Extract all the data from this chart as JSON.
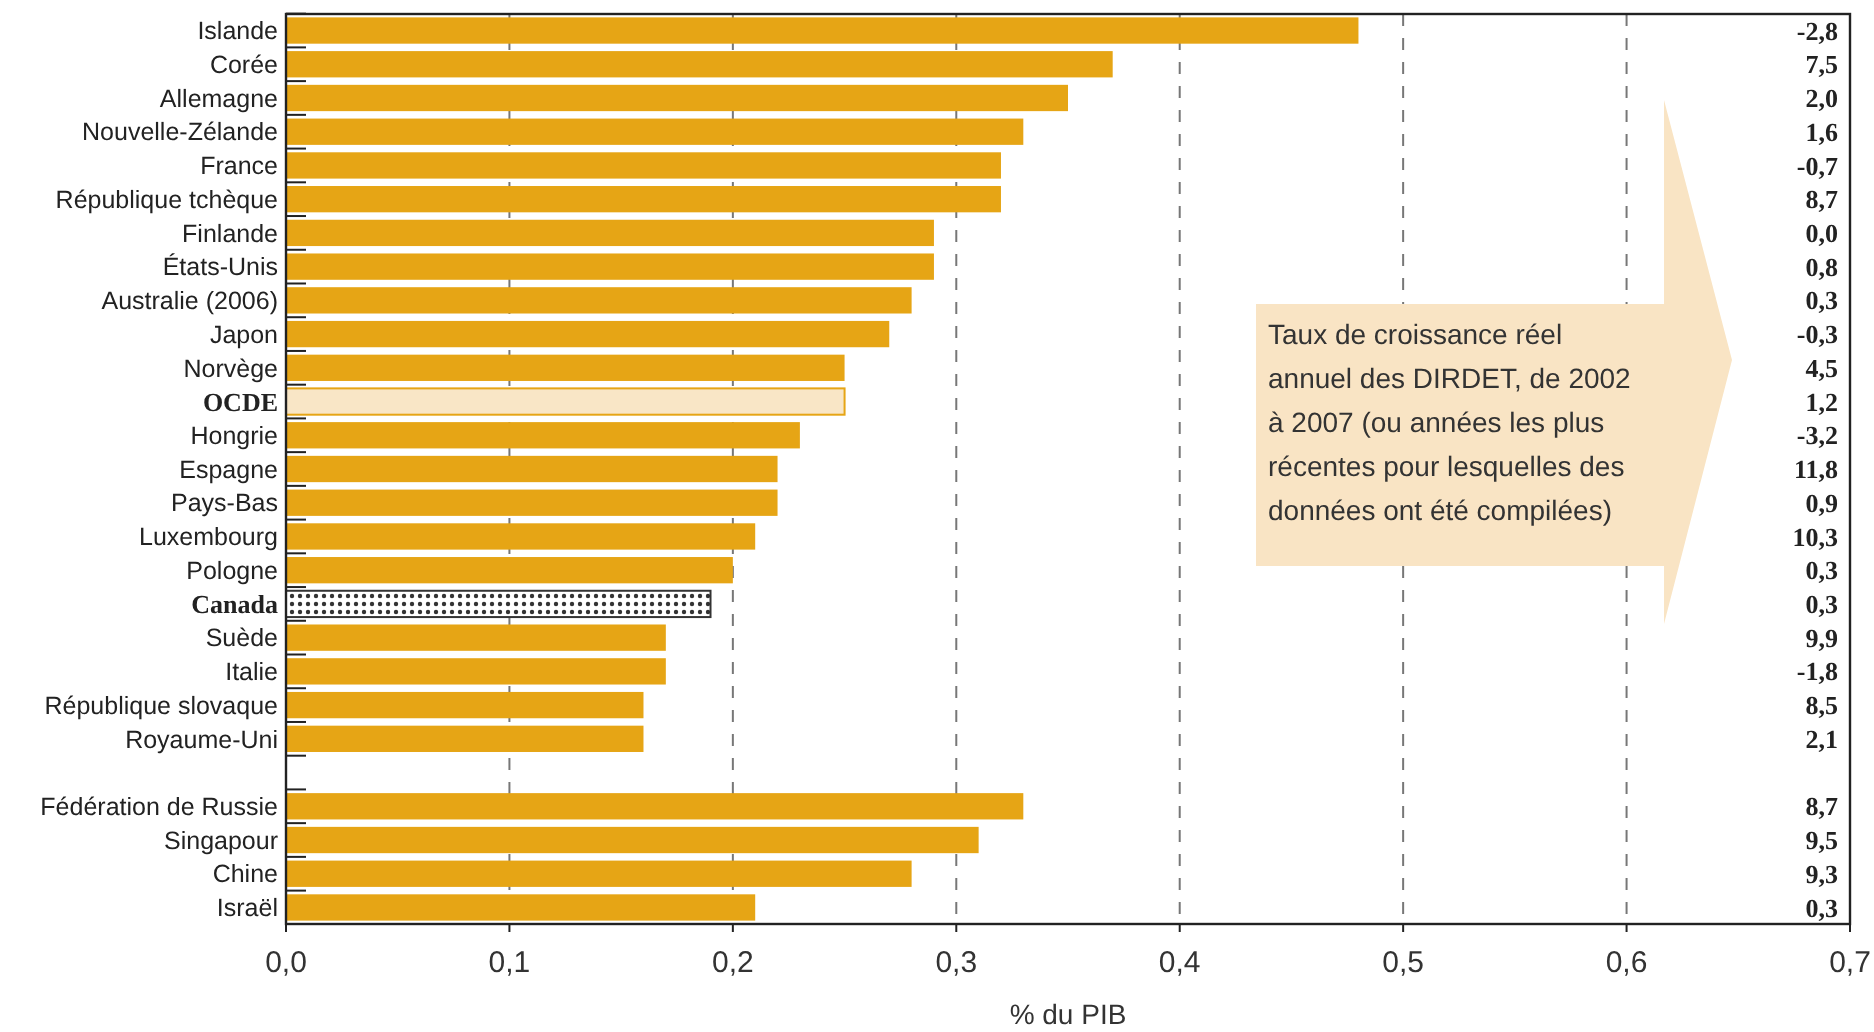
{
  "chart_data": {
    "type": "bar",
    "orientation": "horizontal",
    "xlabel": "% du PIB",
    "categories": [
      "Islande",
      "Corée",
      "Allemagne",
      "Nouvelle-Zélande",
      "France",
      "République tchèque",
      "Finlande",
      "États-Unis",
      "Australie (2006)",
      "Japon",
      "Norvège",
      "OCDE",
      "Hongrie",
      "Espagne",
      "Pays-Bas",
      "Luxembourg",
      "Pologne",
      "Canada",
      "Suède",
      "Italie",
      "République slovaque",
      "Royaume-Uni",
      null,
      "Fédération de Russie",
      "Singapour",
      "Chine",
      "Israël"
    ],
    "values": [
      0.48,
      0.37,
      0.35,
      0.33,
      0.32,
      0.32,
      0.29,
      0.29,
      0.28,
      0.27,
      0.25,
      0.25,
      0.23,
      0.22,
      0.22,
      0.21,
      0.2,
      0.19,
      0.17,
      0.17,
      0.16,
      0.16,
      null,
      0.33,
      0.31,
      0.28,
      0.21
    ],
    "colors": [
      "#e6a515",
      "#e6a515",
      "#e6a515",
      "#e6a515",
      "#e6a515",
      "#e6a515",
      "#e6a515",
      "#e6a515",
      "#e6a515",
      "#e6a515",
      "#e6a515",
      "#f9e6c6",
      "#e6a515",
      "#e6a515",
      "#e6a515",
      "#e6a515",
      "#e6a515",
      "#333333",
      "#e6a515",
      "#e6a515",
      "#e6a515",
      "#e6a515",
      "#e6a515",
      "#e6a515",
      "#e6a515",
      "#e6a515",
      "#e6a515"
    ],
    "xlim": [
      0,
      0.7
    ],
    "xticks": [
      {
        "value": 0,
        "label": "0,0"
      },
      {
        "value": 0.1,
        "label": "0,1"
      },
      {
        "value": 0.2,
        "label": "0,2"
      },
      {
        "value": 0.3,
        "label": "0,3"
      },
      {
        "value": 0.4,
        "label": "0,4"
      },
      {
        "value": 0.5,
        "label": "0,5"
      },
      {
        "value": 0.6,
        "label": "0,6"
      },
      {
        "value": 0.7,
        "label": "0,7"
      }
    ],
    "grid": "x",
    "annotations": [
      "Taux de croissance réel annuel des DIRDET, de 2002 à 2007 (ou années les plus récentes pour lesquelles des données ont été compilées)",
      "-2,8",
      "7,5",
      "2,0",
      "1,6",
      "-0,7",
      "8,7",
      "0,0",
      "0,8",
      "0,3",
      "-0,3",
      "4,5",
      "1,2",
      "-3,2",
      "11,8",
      "0,9",
      "10,3",
      "0,3",
      "0,3",
      "9,9",
      "-1,8",
      "8,5",
      "2,1",
      "8,7",
      "9,5",
      "9,3",
      "0,3"
    ]
  }
}
